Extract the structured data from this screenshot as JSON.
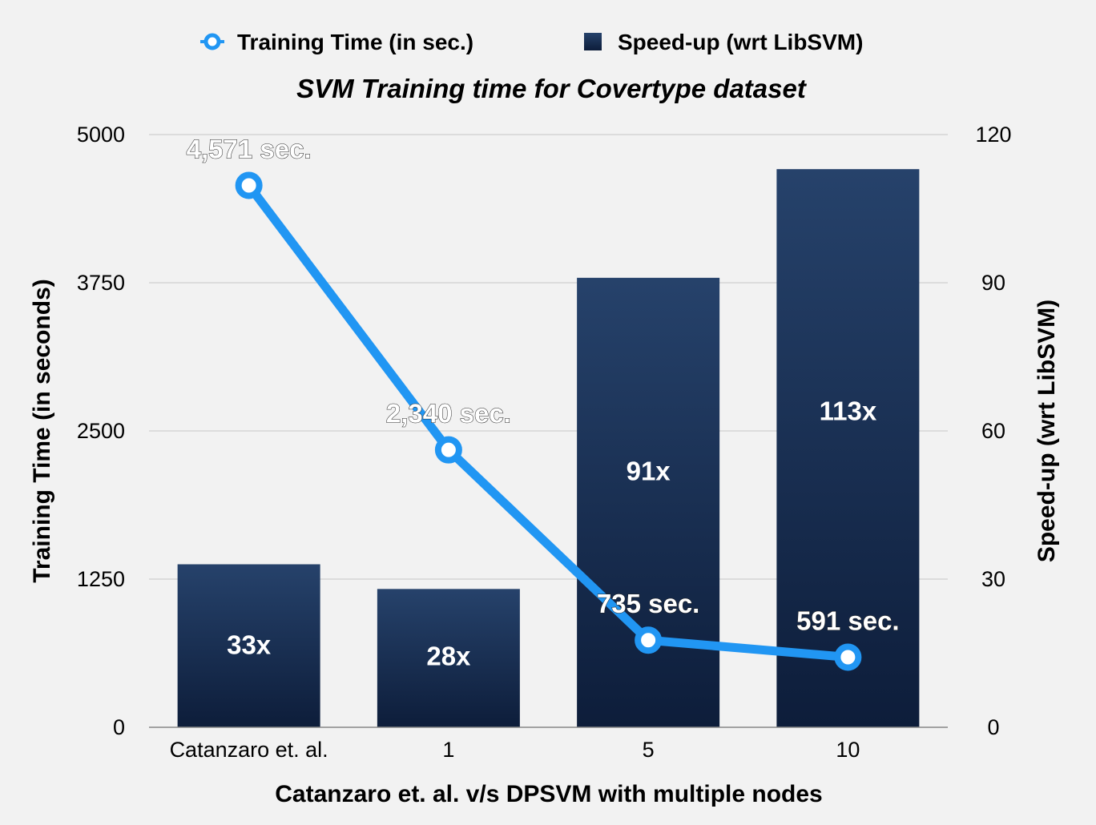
{
  "chart_data": {
    "type": "bar",
    "title": "SVM Training time for Covertype dataset",
    "xlabel": "Catanzaro et. al. v/s DPSVM with multiple nodes",
    "ylabel_left": "Training Time (in seconds)",
    "ylabel_right": "Speed-up (wrt LibSVM)",
    "categories": [
      "Catanzaro et. al.",
      "1",
      "5",
      "10"
    ],
    "ylim_left": [
      0,
      5000
    ],
    "yticks_left": [
      "0",
      "1250",
      "2500",
      "3750",
      "5000"
    ],
    "ylim_right": [
      0,
      120
    ],
    "yticks_right": [
      "0",
      "30",
      "60",
      "90",
      "120"
    ],
    "grid": true,
    "legend_position": "top",
    "series": [
      {
        "name": "Training Time (in sec.)",
        "kind": "line",
        "axis": "left",
        "color": "#2196f3",
        "values": [
          4571,
          2340,
          735,
          591
        ],
        "labels": [
          "4,571 sec.",
          "2,340 sec.",
          "735 sec.",
          "591 sec."
        ]
      },
      {
        "name": "Speed-up (wrt LibSVM)",
        "kind": "bar",
        "axis": "right",
        "color": "#1b3458",
        "values": [
          33,
          28,
          91,
          113
        ],
        "labels": [
          "33x",
          "28x",
          "91x",
          "113x"
        ]
      }
    ]
  }
}
